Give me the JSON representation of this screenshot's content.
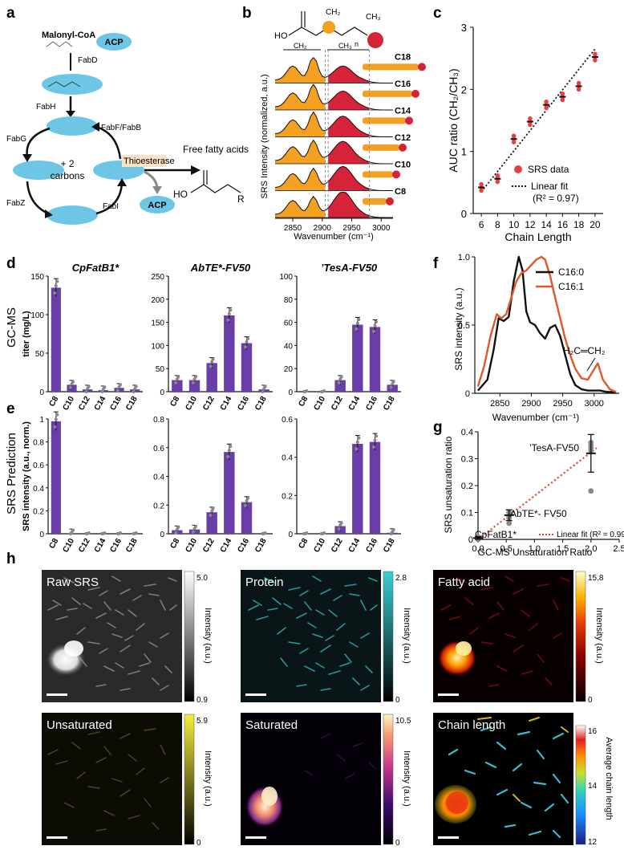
{
  "panels": {
    "a": {
      "label": "a",
      "malonyl": "Malonyl-CoA",
      "acp": "ACP",
      "fabD": "FabD",
      "fabH": "FabH",
      "fabG": "FabG",
      "fabZ": "FabZ",
      "fabI": "FabI",
      "fabF": "FabF/FabB",
      "plus2": "+ 2",
      "carbons": "carbons",
      "thioesterase": "Thioesterase",
      "ffa": "Free fatty acids",
      "ho": "HO",
      "r": "R"
    },
    "b": {
      "label": "b",
      "ylabel": "SRS Intensity (normalized, a.u.)",
      "xlabel": "Wavenumber (cm⁻¹)",
      "xticks": [
        "2850",
        "2900",
        "2950",
        "3000"
      ],
      "ch2": "CH₂",
      "ch3": "CH₃",
      "ho": "HO",
      "n": "n",
      "chains": [
        "C18",
        "C16",
        "C14",
        "C12",
        "C10",
        "C8"
      ]
    },
    "c": {
      "label": "c",
      "legend_data": "SRS data",
      "legend_fit": "Linear fit",
      "legend_r2": "(R² = 0.97)"
    },
    "d": {
      "label": "d",
      "row_title": "GC-MS"
    },
    "e": {
      "label": "e",
      "row_title": "SRS Prediction"
    },
    "f": {
      "label": "f",
      "ylabel": "SRS intensity (a.u.)",
      "xlabel": "Wavenumber (cm⁻¹)",
      "legend": [
        "C16:0",
        "C16:1"
      ],
      "annot": "H₂C═CH₂"
    },
    "g": {
      "label": "g",
      "ylabel": "SRS unsaturation ratio",
      "xlabel": "GC-MS Unsaturation Ratio",
      "labels": [
        "’TesA-FV50",
        "AbTE*- FV50",
        "CpFatB1*"
      ],
      "fit": "Linear fit (R² = 0.99)"
    },
    "h": {
      "label": "h",
      "images": [
        {
          "title": "Raw SRS",
          "max": "5.0",
          "min": "0.9",
          "cb_label": "Intensity (a.u.)"
        },
        {
          "title": "Protein",
          "max": "2.8",
          "min": "0",
          "cb_label": "Intensity (a.u.)"
        },
        {
          "title": "Fatty acid",
          "max": "15.8",
          "min": "0",
          "cb_label": "Intensity (a.u.)"
        },
        {
          "title": "Unsaturated",
          "max": "5.9",
          "min": "0",
          "cb_label": "Intensity (a.u.)"
        },
        {
          "title": "Saturated",
          "max": "10.5",
          "min": "0",
          "cb_label": "Intensity (a.u.)"
        },
        {
          "title": "Chain length",
          "max": "16",
          "mid": "14",
          "min": "12",
          "cb_label": "Average chain length"
        }
      ]
    }
  },
  "chart_data": [
    {
      "id": "c",
      "type": "scatter",
      "xlabel": "Chain Length",
      "ylabel": "AUC ratio (CH₂/CH₃)",
      "xlim": [
        5,
        21
      ],
      "ylim": [
        0,
        3
      ],
      "xticks": [
        6,
        8,
        10,
        12,
        14,
        16,
        18,
        20
      ],
      "yticks": [
        0,
        1,
        2,
        3
      ],
      "x": [
        6,
        8,
        10,
        12,
        14,
        16,
        18,
        20
      ],
      "y": [
        0.42,
        0.56,
        1.2,
        1.48,
        1.75,
        1.88,
        2.05,
        2.52
      ],
      "fit": {
        "x": [
          6,
          20
        ],
        "y": [
          0.35,
          2.65
        ]
      }
    },
    {
      "id": "d1",
      "type": "bar",
      "title": "CpFatB1*",
      "ylabel": "titer (mg/L)",
      "categories": [
        "C8",
        "C10",
        "C12",
        "C14",
        "C16",
        "C18"
      ],
      "values": [
        135,
        9,
        3,
        2,
        5,
        3
      ],
      "ylim": [
        0,
        150
      ],
      "yticks": [
        0,
        50,
        100,
        150
      ]
    },
    {
      "id": "d2",
      "type": "bar",
      "title": "AbTE*-FV50",
      "categories": [
        "C8",
        "C10",
        "C12",
        "C14",
        "C16",
        "C18"
      ],
      "values": [
        25,
        25,
        62,
        165,
        105,
        5
      ],
      "ylim": [
        0,
        250
      ],
      "yticks": [
        0,
        50,
        100,
        150,
        200,
        250
      ]
    },
    {
      "id": "d3",
      "type": "bar",
      "title": "’TesA-FV50",
      "categories": [
        "C8",
        "C10",
        "C12",
        "C14",
        "C16",
        "C18"
      ],
      "values": [
        0,
        0,
        10,
        58,
        56,
        6
      ],
      "ylim": [
        0,
        100
      ],
      "yticks": [
        0,
        20,
        40,
        60,
        80,
        100
      ]
    },
    {
      "id": "e1",
      "type": "bar",
      "ylabel": "SRS intensity (a.u., norm.)",
      "categories": [
        "C8",
        "C10",
        "C12",
        "C14",
        "C16",
        "C18"
      ],
      "values": [
        0.98,
        0.005,
        0,
        0,
        0,
        0
      ],
      "ylim": [
        0,
        1.0
      ],
      "yticks": [
        0,
        0.2,
        0.4,
        0.6,
        0.8,
        1.0
      ]
    },
    {
      "id": "e2",
      "type": "bar",
      "categories": [
        "C8",
        "C10",
        "C12",
        "C14",
        "C16",
        "C18"
      ],
      "values": [
        0.025,
        0.03,
        0.15,
        0.57,
        0.22,
        0
      ],
      "ylim": [
        0,
        0.8
      ],
      "yticks": [
        0,
        0.2,
        0.4,
        0.6,
        0.8
      ]
    },
    {
      "id": "e3",
      "type": "bar",
      "categories": [
        "C8",
        "C10",
        "C12",
        "C14",
        "C16",
        "C18"
      ],
      "values": [
        0,
        0,
        0.04,
        0.47,
        0.48,
        0.005
      ],
      "ylim": [
        0,
        0.6
      ],
      "yticks": [
        0,
        0.2,
        0.4,
        0.6
      ]
    },
    {
      "id": "f",
      "type": "line",
      "xlim": [
        2810,
        3040
      ],
      "ylim": [
        0,
        1.0
      ],
      "xticks": [
        2850,
        2900,
        2950,
        3000
      ],
      "yticks": [
        0,
        0.5,
        1.0
      ],
      "series": [
        {
          "name": "C16:0",
          "color": "#111111",
          "x": [
            2815,
            2830,
            2840,
            2848,
            2856,
            2864,
            2872,
            2880,
            2886,
            2892,
            2898,
            2906,
            2914,
            2922,
            2930,
            2938,
            2946,
            2954,
            2962,
            2970,
            2980,
            2990,
            3000,
            3010,
            3020,
            3035
          ],
          "y": [
            0.02,
            0.1,
            0.32,
            0.55,
            0.53,
            0.56,
            0.82,
            1.0,
            0.9,
            0.6,
            0.52,
            0.5,
            0.44,
            0.4,
            0.48,
            0.5,
            0.42,
            0.28,
            0.14,
            0.06,
            0.03,
            0.02,
            0.02,
            0.02,
            0.01,
            0.01
          ]
        },
        {
          "name": "C16:1",
          "color": "#e2572a",
          "x": [
            2815,
            2825,
            2835,
            2845,
            2852,
            2860,
            2868,
            2876,
            2884,
            2892,
            2900,
            2908,
            2916,
            2922,
            2930,
            2938,
            2946,
            2954,
            2962,
            2970,
            2980,
            2990,
            2998,
            3006,
            3014,
            3025,
            3035
          ],
          "y": [
            0.05,
            0.2,
            0.42,
            0.58,
            0.55,
            0.58,
            0.7,
            0.82,
            0.88,
            0.9,
            0.94,
            0.98,
            1.0,
            0.98,
            0.86,
            0.7,
            0.55,
            0.4,
            0.28,
            0.18,
            0.11,
            0.1,
            0.16,
            0.22,
            0.1,
            0.03,
            0.01
          ]
        }
      ]
    },
    {
      "id": "g",
      "type": "scatter",
      "xlim": [
        0,
        2.5
      ],
      "ylim": [
        0,
        0.4
      ],
      "xticks": [
        0.0,
        0.5,
        1.0,
        1.5,
        2.0,
        2.5
      ],
      "yticks": [
        0,
        0.1,
        0.2,
        0.3,
        0.4
      ],
      "points": [
        {
          "x": 0,
          "y": 0.0
        },
        {
          "x": 0,
          "y": 0.01
        },
        {
          "x": 0,
          "y": 0.005
        },
        {
          "x": 0.55,
          "y": 0.06
        },
        {
          "x": 0.55,
          "y": 0.08
        },
        {
          "x": 0.55,
          "y": 0.1
        },
        {
          "x": 0.55,
          "y": 0.1
        },
        {
          "x": 2.0,
          "y": 0.18
        },
        {
          "x": 2.0,
          "y": 0.33
        },
        {
          "x": 2.0,
          "y": 0.34
        },
        {
          "x": 2.0,
          "y": 0.35
        },
        {
          "x": 2.0,
          "y": 0.36
        }
      ],
      "means": [
        {
          "x": 0,
          "y": 0.005,
          "err": 0.005
        },
        {
          "x": 0.55,
          "y": 0.09,
          "err": 0.02
        },
        {
          "x": 2.0,
          "y": 0.32,
          "err": 0.07
        }
      ],
      "fit": {
        "x": [
          0,
          2.1
        ],
        "y": [
          0.0,
          0.34
        ]
      }
    }
  ]
}
